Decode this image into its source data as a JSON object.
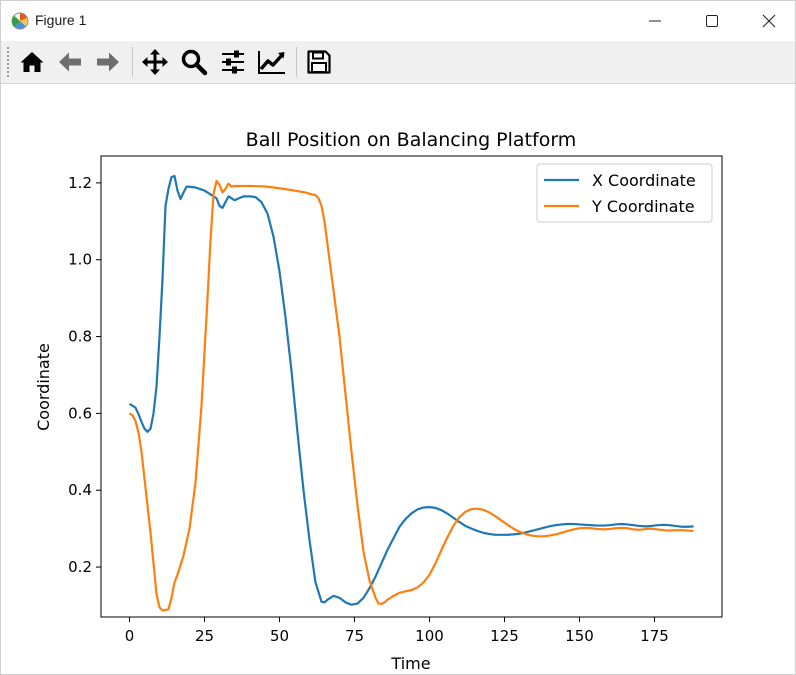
{
  "window": {
    "title": "Figure 1",
    "controls": [
      "minimize",
      "maximize",
      "close"
    ]
  },
  "toolbar": {
    "tools": [
      {
        "name": "home-icon",
        "label": "Home"
      },
      {
        "name": "back-arrow-icon",
        "label": "Back"
      },
      {
        "name": "forward-arrow-icon",
        "label": "Forward"
      },
      {
        "name": "pan-icon",
        "label": "Pan"
      },
      {
        "name": "zoom-icon",
        "label": "Zoom"
      },
      {
        "name": "subplots-config-icon",
        "label": "Configure subplots"
      },
      {
        "name": "edit-axis-icon",
        "label": "Edit axis"
      },
      {
        "name": "save-icon",
        "label": "Save"
      }
    ]
  },
  "chart_data": {
    "type": "line",
    "title": "Ball Position on Balancing Platform",
    "xlabel": "Time",
    "ylabel": "Coordinate",
    "xlim": [
      -9.5,
      197.5
    ],
    "ylim": [
      0.07,
      1.27
    ],
    "xticks": [
      0,
      25,
      50,
      75,
      100,
      125,
      150,
      175
    ],
    "yticks": [
      0.2,
      0.4,
      0.6,
      0.8,
      1.0,
      1.2
    ],
    "ytick_labels": [
      "0.2",
      "0.4",
      "0.6",
      "0.8",
      "1.0",
      "1.2"
    ],
    "grid": false,
    "legend_position": "top-right",
    "series": [
      {
        "name": "X Coordinate",
        "color": "#1f77b4",
        "x": [
          0,
          2,
          3,
          4,
          5,
          6,
          7,
          8,
          9,
          10,
          11,
          12,
          13,
          14,
          15,
          16,
          17,
          18,
          19,
          20,
          22,
          25,
          27,
          29,
          30,
          31,
          32,
          33,
          35,
          38,
          40,
          42,
          44,
          46,
          48,
          50,
          52,
          54,
          56,
          58,
          60,
          62,
          64,
          65,
          66,
          68,
          70,
          72,
          74,
          76,
          78,
          80,
          82,
          84,
          86,
          88,
          90,
          92,
          94,
          96,
          98,
          100,
          102,
          104,
          106,
          108,
          110,
          112,
          114,
          116,
          118,
          120,
          122,
          124,
          126,
          128,
          130,
          132,
          134,
          136,
          138,
          140,
          142,
          144,
          146,
          148,
          150,
          152,
          154,
          156,
          158,
          160,
          162,
          164,
          166,
          168,
          170,
          172,
          174,
          176,
          178,
          180,
          182,
          184,
          186,
          188
        ],
        "y": [
          0.625,
          0.615,
          0.598,
          0.578,
          0.56,
          0.552,
          0.56,
          0.6,
          0.67,
          0.8,
          0.95,
          1.14,
          1.185,
          1.215,
          1.218,
          1.18,
          1.158,
          1.175,
          1.19,
          1.19,
          1.188,
          1.18,
          1.17,
          1.16,
          1.14,
          1.135,
          1.15,
          1.165,
          1.155,
          1.165,
          1.165,
          1.163,
          1.15,
          1.12,
          1.06,
          0.97,
          0.85,
          0.71,
          0.55,
          0.4,
          0.27,
          0.16,
          0.11,
          0.108,
          0.115,
          0.125,
          0.12,
          0.108,
          0.102,
          0.105,
          0.12,
          0.145,
          0.175,
          0.21,
          0.245,
          0.275,
          0.305,
          0.325,
          0.34,
          0.35,
          0.355,
          0.356,
          0.354,
          0.348,
          0.339,
          0.328,
          0.317,
          0.307,
          0.3,
          0.294,
          0.289,
          0.286,
          0.284,
          0.284,
          0.284,
          0.285,
          0.287,
          0.29,
          0.294,
          0.298,
          0.302,
          0.306,
          0.309,
          0.311,
          0.312,
          0.312,
          0.311,
          0.31,
          0.309,
          0.308,
          0.308,
          0.309,
          0.311,
          0.312,
          0.311,
          0.309,
          0.307,
          0.306,
          0.307,
          0.309,
          0.31,
          0.309,
          0.307,
          0.305,
          0.305,
          0.306
        ]
      },
      {
        "name": "Y Coordinate",
        "color": "#ff7f0e",
        "x": [
          0,
          1,
          2,
          3,
          4,
          5,
          6,
          7,
          8,
          9,
          10,
          11,
          12,
          13,
          14,
          15,
          16,
          18,
          20,
          22,
          24,
          26,
          27,
          28,
          29,
          30,
          31,
          32,
          33,
          34,
          35,
          40,
          45,
          50,
          55,
          58,
          60,
          61,
          62,
          63,
          64,
          65,
          66,
          67,
          68,
          70,
          72,
          74,
          76,
          78,
          80,
          82,
          83,
          84,
          85,
          86,
          88,
          90,
          92,
          94,
          96,
          98,
          100,
          102,
          104,
          106,
          108,
          110,
          112,
          114,
          116,
          118,
          120,
          122,
          124,
          126,
          128,
          130,
          132,
          134,
          136,
          138,
          140,
          142,
          144,
          146,
          148,
          150,
          152,
          154,
          156,
          158,
          160,
          162,
          164,
          166,
          168,
          170,
          172,
          174,
          176,
          178,
          180,
          182,
          184,
          186,
          188
        ],
        "y": [
          0.6,
          0.595,
          0.58,
          0.55,
          0.5,
          0.43,
          0.36,
          0.29,
          0.21,
          0.13,
          0.095,
          0.087,
          0.088,
          0.09,
          0.12,
          0.16,
          0.18,
          0.23,
          0.3,
          0.42,
          0.62,
          0.9,
          1.05,
          1.17,
          1.205,
          1.195,
          1.175,
          1.185,
          1.198,
          1.19,
          1.192,
          1.192,
          1.191,
          1.186,
          1.18,
          1.176,
          1.172,
          1.17,
          1.168,
          1.16,
          1.14,
          1.1,
          1.04,
          0.98,
          0.92,
          0.8,
          0.65,
          0.5,
          0.36,
          0.24,
          0.165,
          0.12,
          0.105,
          0.104,
          0.108,
          0.115,
          0.125,
          0.133,
          0.137,
          0.14,
          0.147,
          0.16,
          0.18,
          0.21,
          0.245,
          0.278,
          0.308,
          0.33,
          0.344,
          0.351,
          0.352,
          0.349,
          0.342,
          0.332,
          0.321,
          0.31,
          0.3,
          0.292,
          0.286,
          0.282,
          0.28,
          0.28,
          0.282,
          0.285,
          0.289,
          0.294,
          0.298,
          0.301,
          0.302,
          0.301,
          0.299,
          0.298,
          0.299,
          0.301,
          0.302,
          0.301,
          0.298,
          0.297,
          0.299,
          0.3,
          0.298,
          0.296,
          0.295,
          0.296,
          0.296,
          0.295,
          0.294
        ]
      }
    ]
  }
}
